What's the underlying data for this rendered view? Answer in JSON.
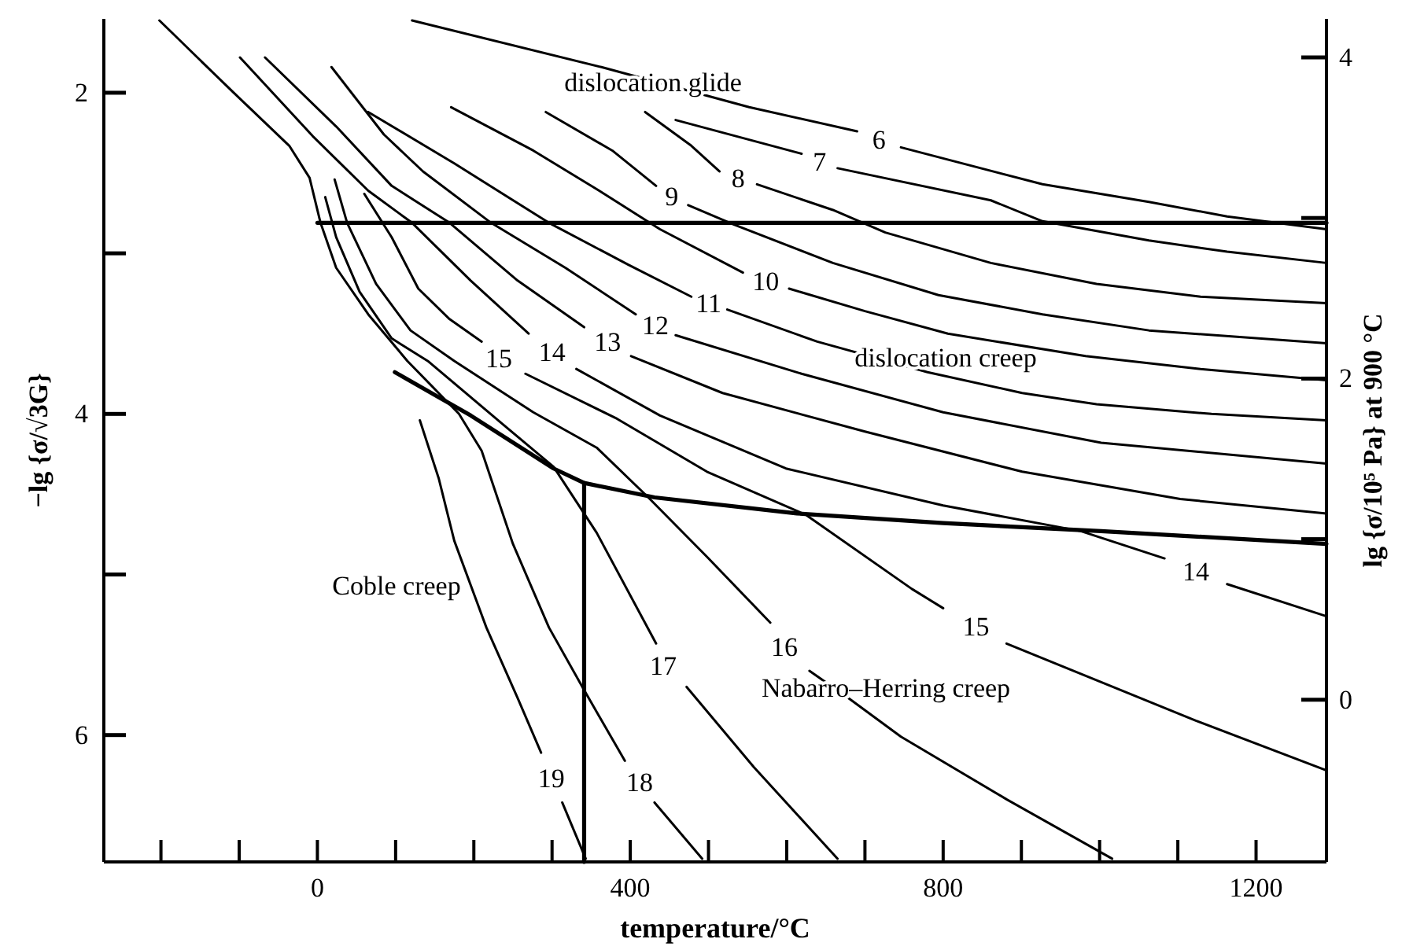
{
  "chart_data": {
    "type": "line",
    "xlabel": "temperature/°C",
    "ylabel": "−lg {σ/√3G}",
    "y2label": "lg {σ/10⁵ Pa} at 900 °C",
    "xlim": [
      -273,
      1290
    ],
    "ylim": [
      6.79,
      1.54
    ],
    "y2lim": [
      -1.01,
      4.24
    ],
    "xticks": [
      {
        "value": -200,
        "label": null
      },
      {
        "value": -100,
        "label": null
      },
      0,
      {
        "value": 100,
        "label": null
      },
      {
        "value": 200,
        "label": null
      },
      {
        "value": 300,
        "label": null
      },
      400,
      {
        "value": 500,
        "label": null
      },
      {
        "value": 600,
        "label": null
      },
      {
        "value": 700,
        "label": null
      },
      800,
      {
        "value": 900,
        "label": null
      },
      {
        "value": 1000,
        "label": null
      },
      {
        "value": 1100,
        "label": null
      },
      1200
    ],
    "yticks": [
      2,
      {
        "value": 3,
        "label": null
      },
      4,
      {
        "value": 5,
        "label": null
      },
      6
    ],
    "y2ticks": [
      0,
      {
        "value": 1,
        "label": null
      },
      2,
      {
        "value": 3,
        "label": null
      },
      4
    ],
    "series": [
      {
        "name": "6",
        "color": "#000000",
        "x": [
          121,
          363,
          552,
          690,
          718,
          746,
          927,
          1063,
          1163,
          1290
        ],
        "values": [
          1.55,
          1.84,
          2.09,
          2.24,
          null,
          2.34,
          2.57,
          2.68,
          2.77,
          2.85
        ]
      },
      {
        "name": "7",
        "color": "#000000",
        "x": [
          458,
          619,
          642,
          665,
          861,
          927,
          1063,
          1163,
          1290
        ],
        "values": [
          2.17,
          2.38,
          null,
          2.47,
          2.67,
          2.8,
          2.92,
          2.99,
          3.06
        ]
      },
      {
        "name": "8",
        "color": "#000000",
        "x": [
          419,
          478,
          514,
          538,
          562,
          659,
          726,
          861,
          996,
          1129,
          1290
        ],
        "values": [
          2.12,
          2.33,
          2.49,
          null,
          2.57,
          2.73,
          2.87,
          3.06,
          3.19,
          3.27,
          3.31
        ]
      },
      {
        "name": "9",
        "color": "#000000",
        "x": [
          292,
          377,
          433,
          453,
          474,
          532,
          659,
          794,
          927,
          1063,
          1290
        ],
        "values": [
          2.12,
          2.36,
          2.58,
          null,
          2.7,
          2.82,
          3.06,
          3.26,
          3.38,
          3.48,
          3.56
        ]
      },
      {
        "name": "10",
        "color": "#000000",
        "x": [
          171,
          276,
          357,
          438,
          544,
          573,
          603,
          700,
          806,
          982,
          1129,
          1290
        ],
        "values": [
          2.09,
          2.36,
          2.6,
          2.85,
          3.12,
          null,
          3.22,
          3.36,
          3.5,
          3.64,
          3.72,
          3.79
        ]
      },
      {
        "name": "11",
        "color": "#000000",
        "x": [
          65,
          175,
          296,
          397,
          478,
          500,
          524,
          639,
          780,
          901,
          996,
          1143,
          1290
        ],
        "values": [
          2.12,
          2.44,
          2.81,
          3.07,
          3.27,
          null,
          3.35,
          3.55,
          3.74,
          3.87,
          3.94,
          4.0,
          4.04
        ]
      },
      {
        "name": "12",
        "color": "#000000",
        "x": [
          18,
          85,
          135,
          222,
          317,
          407,
          432,
          458,
          619,
          800,
          1002,
          1290
        ],
        "values": [
          1.84,
          2.26,
          2.49,
          2.81,
          3.09,
          3.38,
          null,
          3.51,
          3.75,
          3.99,
          4.18,
          4.31
        ]
      },
      {
        "name": "13",
        "color": "#000000",
        "x": [
          -67,
          24,
          95,
          169,
          256,
          341,
          371,
          401,
          518,
          700,
          901,
          1103,
          1290
        ],
        "values": [
          1.78,
          2.21,
          2.58,
          2.81,
          3.17,
          3.46,
          null,
          3.64,
          3.87,
          4.11,
          4.36,
          4.53,
          4.62
        ]
      },
      {
        "name": "14",
        "color": "#000000",
        "x": [
          -99,
          -6,
          65,
          121,
          196,
          270,
          300,
          331,
          438,
          599,
          800,
          976,
          1083,
          1123,
          1163,
          1290
        ],
        "values": [
          1.78,
          2.27,
          2.61,
          2.81,
          3.17,
          3.5,
          null,
          3.72,
          4.01,
          4.34,
          4.57,
          4.73,
          4.9,
          null,
          5.06,
          5.26
        ]
      },
      {
        "name": "15",
        "color": "#000000",
        "x": [
          60,
          95,
          129,
          169,
          210,
          232,
          266,
          383,
          498,
          625,
          760,
          800,
          842,
          881,
          1002,
          1123,
          1290
        ],
        "values": [
          2.63,
          2.9,
          3.22,
          3.41,
          3.55,
          null,
          3.75,
          4.03,
          4.36,
          4.63,
          5.09,
          5.21,
          null,
          5.43,
          5.67,
          5.91,
          6.22
        ]
      },
      {
        "name": "16",
        "color": "#000000",
        "x": [
          22,
          38,
          75,
          119,
          175,
          276,
          357,
          423,
          498,
          579,
          597,
          629,
          679,
          746,
          881,
          1016
        ],
        "values": [
          2.54,
          2.81,
          3.19,
          3.48,
          3.67,
          3.99,
          4.21,
          4.52,
          4.89,
          5.3,
          null,
          5.6,
          5.77,
          6.01,
          6.4,
          6.77
        ]
      },
      {
        "name": "17",
        "color": "#000000",
        "x": [
          10,
          24,
          54,
          95,
          141,
          236,
          302,
          357,
          433,
          442,
          472,
          558,
          665
        ],
        "values": [
          2.65,
          2.9,
          3.24,
          3.53,
          3.67,
          4.06,
          4.33,
          4.74,
          5.43,
          null,
          5.7,
          6.2,
          6.77
        ]
      },
      {
        "name": "18",
        "color": "#000000",
        "x": [
          -202,
          -107,
          -36,
          -10,
          4,
          24,
          65,
          115,
          181,
          210,
          250,
          296,
          341,
          393,
          412,
          431,
          492
        ],
        "values": [
          1.55,
          2.0,
          2.33,
          2.53,
          2.81,
          3.09,
          3.38,
          3.67,
          4.0,
          4.23,
          4.81,
          5.33,
          5.72,
          6.16,
          null,
          6.42,
          6.77
        ]
      },
      {
        "name": "19",
        "color": "#000000",
        "x": [
          131,
          155,
          175,
          216,
          256,
          286,
          299,
          313,
          343
        ],
        "values": [
          4.04,
          4.4,
          4.79,
          5.33,
          5.77,
          6.11,
          null,
          6.42,
          6.77
        ]
      },
      {
        "color": "#000000",
        "x": [
          0,
          1290
        ],
        "values": [
          2.81,
          2.81
        ]
      },
      {
        "color": "#000000",
        "x": [
          99,
          196,
          302,
          341,
          431,
          613,
          800,
          1002,
          1290
        ],
        "values": [
          3.74,
          4.01,
          4.34,
          4.43,
          4.52,
          4.62,
          4.68,
          4.73,
          4.81
        ]
      },
      {
        "color": "#000000",
        "x": [
          341,
          341
        ],
        "values": [
          4.43,
          6.79
        ]
      }
    ],
    "annotations": [
      "dislocation glide",
      "dislocation creep",
      "Coble creep",
      "Nabarro–Herring creep"
    ]
  }
}
